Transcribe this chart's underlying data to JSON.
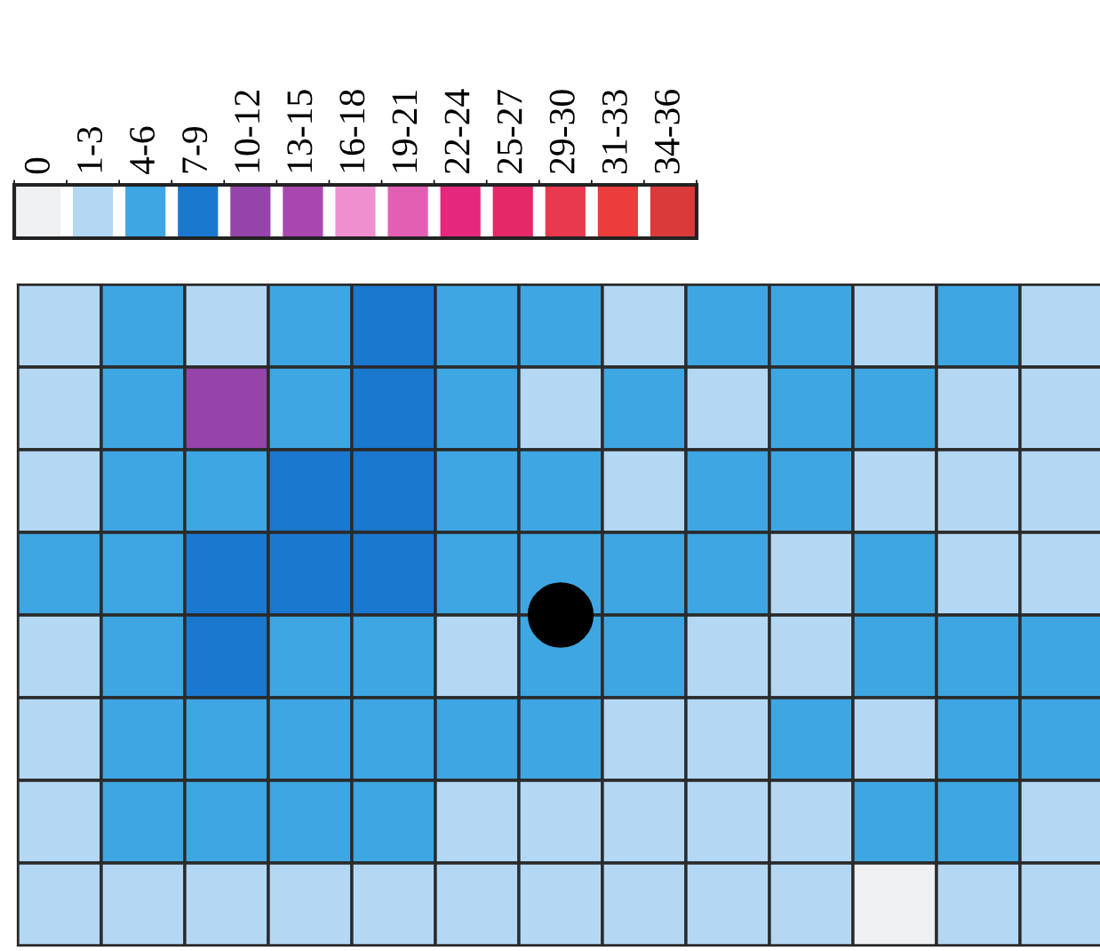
{
  "chart_data": {
    "type": "heatmap",
    "categories": [
      null,
      null,
      null,
      null,
      null,
      null,
      null,
      null,
      null,
      null,
      null,
      null,
      null
    ],
    "y_categories": [
      null,
      null,
      null,
      null,
      null,
      null,
      null,
      null
    ],
    "cells": [
      [
        1,
        2,
        1,
        2,
        3,
        2,
        2,
        1,
        2,
        2,
        1,
        2,
        1
      ],
      [
        1,
        2,
        4,
        2,
        3,
        2,
        1,
        2,
        1,
        2,
        2,
        1,
        1
      ],
      [
        1,
        2,
        2,
        3,
        3,
        2,
        2,
        1,
        2,
        2,
        1,
        1,
        1
      ],
      [
        2,
        2,
        3,
        3,
        3,
        2,
        2,
        2,
        2,
        1,
        2,
        1,
        1
      ],
      [
        1,
        2,
        3,
        2,
        2,
        1,
        2,
        2,
        1,
        1,
        2,
        2,
        2
      ],
      [
        1,
        2,
        2,
        2,
        2,
        2,
        2,
        1,
        1,
        2,
        1,
        2,
        2
      ],
      [
        1,
        2,
        2,
        2,
        2,
        1,
        1,
        1,
        1,
        1,
        2,
        2,
        1
      ],
      [
        1,
        1,
        1,
        1,
        1,
        1,
        1,
        1,
        1,
        1,
        0,
        1,
        1
      ]
    ],
    "clim": [
      -0.5,
      12.5
    ],
    "cticks": [
      {
        "value": 0,
        "label": "0"
      },
      {
        "value": 1,
        "label": "1-3"
      },
      {
        "value": 2,
        "label": "4-6"
      },
      {
        "value": 3,
        "label": "7-9"
      },
      {
        "value": 4,
        "label": "10-12"
      },
      {
        "value": 5,
        "label": "13-15"
      },
      {
        "value": 6,
        "label": "16-18"
      },
      {
        "value": 7,
        "label": "19-21"
      },
      {
        "value": 8,
        "label": "22-24"
      },
      {
        "value": 9,
        "label": "25-27"
      },
      {
        "value": 10,
        "label": "29-30"
      },
      {
        "value": 11,
        "label": "31-33"
      },
      {
        "value": 12,
        "label": "34-36"
      }
    ],
    "colors": [
      "#eef0f2",
      "#b4d8f4",
      "#3ea6e2",
      "#1b78cf",
      "#9544aa",
      "#a947b0",
      "#ee90d0",
      "#e35fb4",
      "#e5287e",
      "#e52868",
      "#e8394f",
      "#ea3d3c",
      "#db3a3a"
    ]
  }
}
